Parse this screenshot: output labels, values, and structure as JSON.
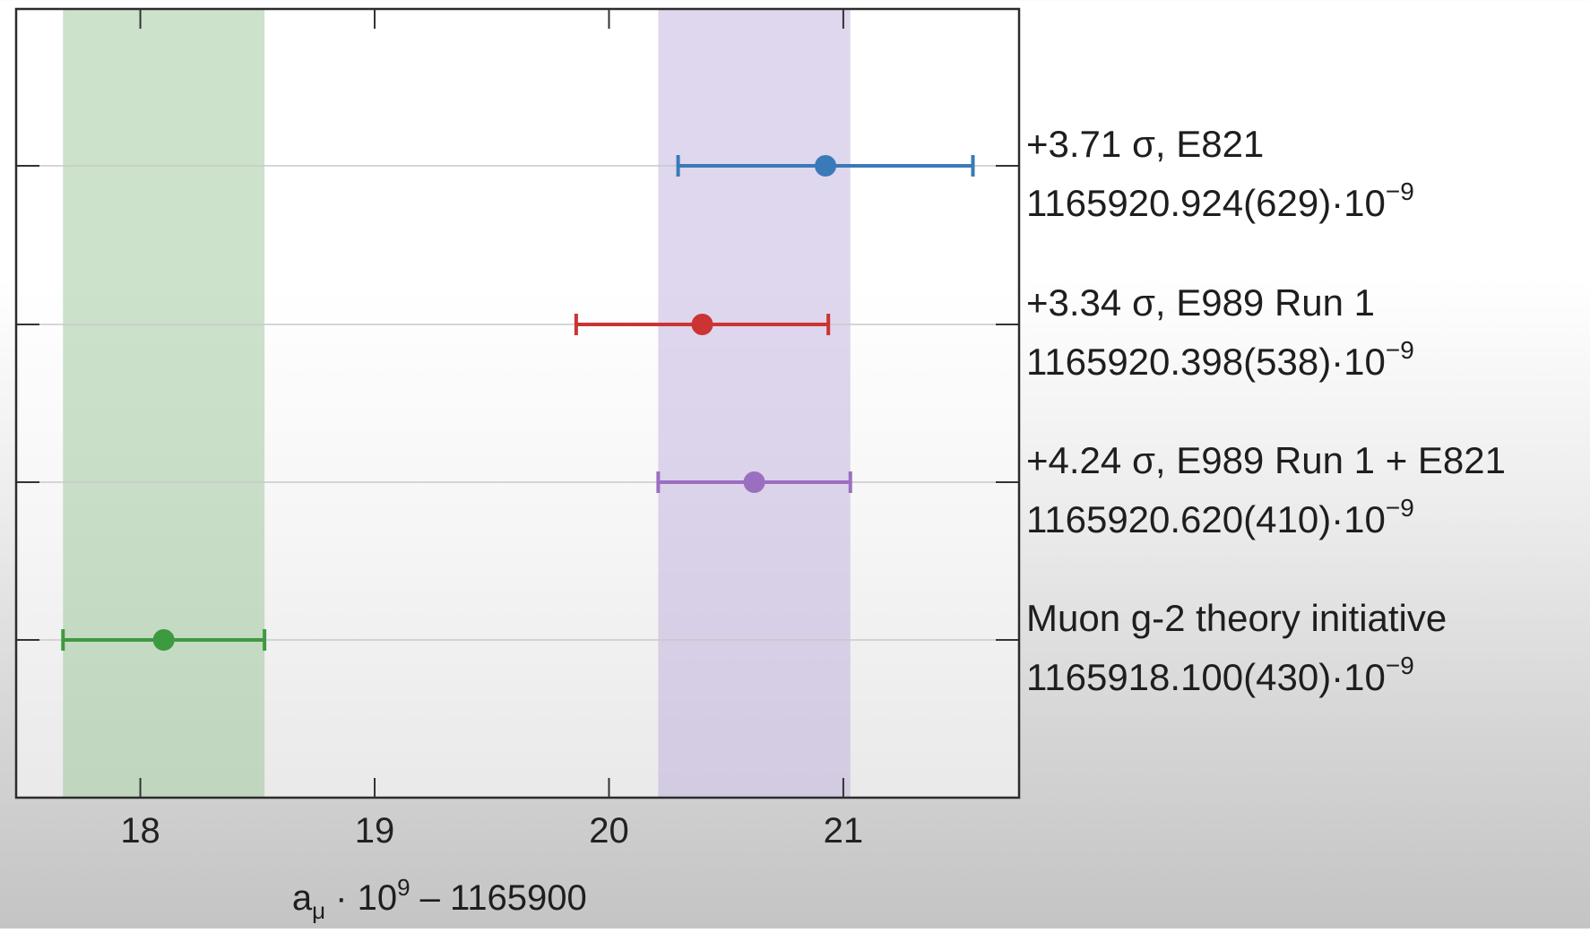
{
  "chart_data": {
    "type": "scatter",
    "orientation": "horizontal-errorbar",
    "xlabel": {
      "base": "a",
      "subscript": "μ",
      "middle": " · 10",
      "superscript": "9",
      "tail": " – 1165900"
    },
    "xlim": [
      17.47,
      21.75
    ],
    "xticks": [
      "18",
      "19",
      "20",
      "21"
    ],
    "grid": "horizontal",
    "series": [
      {
        "label_line1": "+3.71 σ, E821",
        "label_line2": "1165920.924(629)·10",
        "exponent": "−9",
        "x": 20.924,
        "err": 0.629,
        "color": "#3a7ab8"
      },
      {
        "label_line1": "+3.34 σ, E989 Run 1",
        "label_line2": "1165920.398(538)·10",
        "exponent": "−9",
        "x": 20.398,
        "err": 0.538,
        "color": "#cc3333"
      },
      {
        "label_line1": "+4.24 σ, E989 Run 1 + E821",
        "label_line2": "1165920.620(410)·10",
        "exponent": "−9",
        "x": 20.62,
        "err": 0.41,
        "color": "#9b6fc0"
      },
      {
        "label_line1": "Muon g-2 theory initiative",
        "label_line2": "1165918.100(430)·10",
        "exponent": "−9",
        "x": 18.1,
        "err": 0.43,
        "color": "#3e9a3e"
      }
    ],
    "bands": [
      {
        "name": "theory",
        "from": 17.67,
        "to": 18.53,
        "color": "#8fbf8c"
      },
      {
        "name": "experiment",
        "from": 20.21,
        "to": 21.03,
        "color": "#b8a6d6"
      }
    ]
  }
}
